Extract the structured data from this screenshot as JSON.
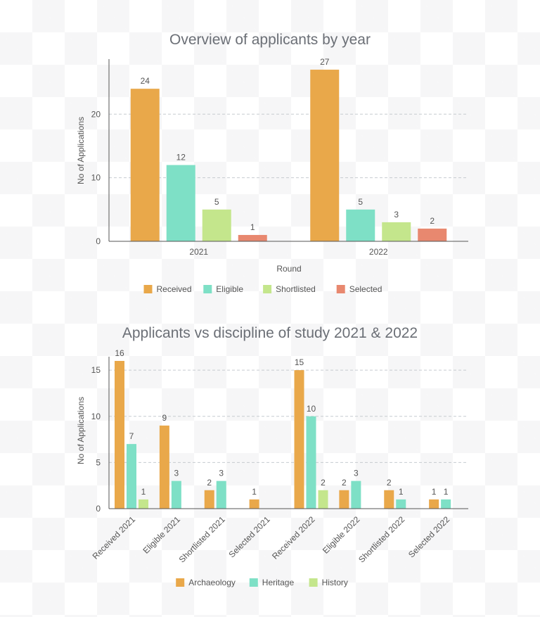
{
  "chart_data": [
    {
      "type": "bar",
      "title": "Overview of applicants by year",
      "xlabel": "Round",
      "ylabel": "No of Applications",
      "categories": [
        "2021",
        "2022"
      ],
      "series": [
        {
          "name": "Received",
          "values": [
            24,
            27
          ]
        },
        {
          "name": "Eligible",
          "values": [
            12,
            5
          ]
        },
        {
          "name": "Shortlisted",
          "values": [
            5,
            3
          ]
        },
        {
          "name": "Selected",
          "values": [
            1,
            2
          ]
        }
      ],
      "ylim": [
        0,
        28
      ],
      "yticks": [
        0,
        10,
        20
      ],
      "grid": true,
      "legend": "bottom",
      "colors": [
        "#e9a84a",
        "#7ee0c6",
        "#c4e68c",
        "#e8886f"
      ]
    },
    {
      "type": "bar",
      "title": "Applicants vs discipline of study 2021 & 2022",
      "xlabel": "",
      "ylabel": "No of Applications",
      "categories": [
        "Received 2021",
        "Eligible 2021",
        "Shortlisted 2021",
        "Selected 2021",
        "Received 2022",
        "Eligible 2022",
        "Shortlisted 2022",
        "Selected 2022"
      ],
      "series": [
        {
          "name": "Archaeology",
          "values": [
            16,
            9,
            2,
            1,
            15,
            2,
            2,
            1
          ]
        },
        {
          "name": "Heritage",
          "values": [
            7,
            3,
            3,
            null,
            10,
            3,
            1,
            1
          ]
        },
        {
          "name": "History",
          "values": [
            1,
            null,
            null,
            null,
            2,
            null,
            null,
            null
          ]
        }
      ],
      "ylim": [
        0,
        16
      ],
      "yticks": [
        0,
        5,
        10,
        15
      ],
      "grid": true,
      "legend": "bottom",
      "colors": [
        "#e9a84a",
        "#7ee0c6",
        "#c4e68c"
      ]
    }
  ]
}
